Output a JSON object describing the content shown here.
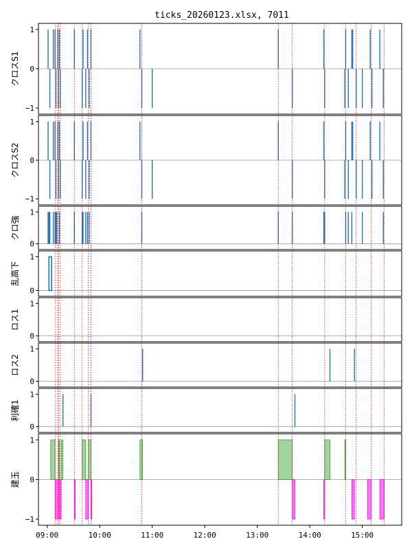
{
  "chart_data": {
    "type": "step-subplots",
    "title": "ticks_20260123.xlsx, 7011",
    "xlim": [
      "08:50",
      "15:45"
    ],
    "xticks": [
      "09:00",
      "10:00",
      "11:00",
      "12:00",
      "13:00",
      "14:00",
      "15:00"
    ],
    "vlines": [
      "09:09",
      "09:12",
      "09:13",
      "09:15",
      "09:31",
      "09:40",
      "09:47",
      "09:50",
      "10:48",
      "13:24",
      "13:40",
      "14:17",
      "14:41",
      "14:53",
      "15:10",
      "15:25"
    ],
    "colors": {
      "line": "#1f77b4",
      "vline": "#ff0000",
      "zero": "#999999",
      "pos_fill": "#2ca02c",
      "neg_fill": "#ff00ff"
    },
    "panels": [
      {
        "ylabel": "クロスS1",
        "yticks": [
          1,
          0,
          -1
        ],
        "ylim": [
          -1.05,
          1.05
        ],
        "signals": [
          {
            "time": "09:01",
            "value": 1
          },
          {
            "time": "09:03",
            "value": -1
          },
          {
            "time": "09:07",
            "value": 1
          },
          {
            "time": "09:09",
            "value": 1
          },
          {
            "time": "09:10",
            "value": -1
          },
          {
            "time": "09:12",
            "value": 1
          },
          {
            "time": "09:13",
            "value": -1
          },
          {
            "time": "09:14",
            "value": 1
          },
          {
            "time": "09:15",
            "value": -1
          },
          {
            "time": "09:31",
            "value": 1
          },
          {
            "time": "09:40",
            "value": -1
          },
          {
            "time": "09:41",
            "value": 1
          },
          {
            "time": "09:44",
            "value": -1
          },
          {
            "time": "09:46",
            "value": 1
          },
          {
            "time": "09:48",
            "value": -1
          },
          {
            "time": "09:50",
            "value": 1
          },
          {
            "time": "10:46",
            "value": 1
          },
          {
            "time": "10:48",
            "value": -1
          },
          {
            "time": "11:00",
            "value": -1
          },
          {
            "time": "13:24",
            "value": 1
          },
          {
            "time": "13:40",
            "value": -1
          },
          {
            "time": "14:16",
            "value": 1
          },
          {
            "time": "14:17",
            "value": -1
          },
          {
            "time": "14:40",
            "value": -1
          },
          {
            "time": "14:41",
            "value": 1
          },
          {
            "time": "14:44",
            "value": -1
          },
          {
            "time": "14:48",
            "value": 1
          },
          {
            "time": "14:49",
            "value": 1
          },
          {
            "time": "14:53",
            "value": -1
          },
          {
            "time": "15:00",
            "value": -1
          },
          {
            "time": "15:09",
            "value": 1
          },
          {
            "time": "15:11",
            "value": -1
          },
          {
            "time": "15:20",
            "value": 1
          },
          {
            "time": "15:24",
            "value": -1
          }
        ]
      },
      {
        "ylabel": "クロスS2",
        "yticks": [
          1,
          0,
          -1
        ],
        "ylim": [
          -1.05,
          1.05
        ],
        "signals": [
          {
            "time": "09:01",
            "value": 1
          },
          {
            "time": "09:03",
            "value": -1
          },
          {
            "time": "09:07",
            "value": 1
          },
          {
            "time": "09:09",
            "value": 1
          },
          {
            "time": "09:10",
            "value": -1
          },
          {
            "time": "09:12",
            "value": 1
          },
          {
            "time": "09:13",
            "value": -1
          },
          {
            "time": "09:14",
            "value": 1
          },
          {
            "time": "09:15",
            "value": -1
          },
          {
            "time": "09:31",
            "value": 1
          },
          {
            "time": "09:40",
            "value": -1
          },
          {
            "time": "09:41",
            "value": 1
          },
          {
            "time": "09:44",
            "value": -1
          },
          {
            "time": "09:46",
            "value": 1
          },
          {
            "time": "09:48",
            "value": -1
          },
          {
            "time": "09:50",
            "value": 1
          },
          {
            "time": "10:46",
            "value": 1
          },
          {
            "time": "10:48",
            "value": -1
          },
          {
            "time": "11:00",
            "value": -1
          },
          {
            "time": "13:24",
            "value": 1
          },
          {
            "time": "13:40",
            "value": -1
          },
          {
            "time": "14:16",
            "value": 1
          },
          {
            "time": "14:17",
            "value": -1
          },
          {
            "time": "14:40",
            "value": -1
          },
          {
            "time": "14:41",
            "value": 1
          },
          {
            "time": "14:44",
            "value": -1
          },
          {
            "time": "14:48",
            "value": 1
          },
          {
            "time": "14:49",
            "value": 1
          },
          {
            "time": "14:53",
            "value": -1
          },
          {
            "time": "15:00",
            "value": -1
          },
          {
            "time": "15:09",
            "value": 1
          },
          {
            "time": "15:11",
            "value": -1
          },
          {
            "time": "15:20",
            "value": 1
          },
          {
            "time": "15:24",
            "value": -1
          }
        ]
      },
      {
        "ylabel": "クロ強",
        "yticks": [
          1,
          0
        ],
        "ylim": [
          -0.05,
          1.05
        ],
        "signals": [
          {
            "time": "09:01",
            "value": 1
          },
          {
            "time": "09:02",
            "value": 1
          },
          {
            "time": "09:03",
            "value": 1
          },
          {
            "time": "09:07",
            "value": 1
          },
          {
            "time": "09:09",
            "value": 1
          },
          {
            "time": "09:10",
            "value": 1
          },
          {
            "time": "09:11",
            "value": 1
          },
          {
            "time": "09:14",
            "value": 1
          },
          {
            "time": "09:31",
            "value": 1
          },
          {
            "time": "09:40",
            "value": 1
          },
          {
            "time": "09:41",
            "value": 1
          },
          {
            "time": "09:44",
            "value": 1
          },
          {
            "time": "09:46",
            "value": 1
          },
          {
            "time": "09:48",
            "value": 1
          },
          {
            "time": "10:48",
            "value": 1
          },
          {
            "time": "13:24",
            "value": 1
          },
          {
            "time": "13:40",
            "value": 1
          },
          {
            "time": "14:16",
            "value": 1
          },
          {
            "time": "14:17",
            "value": 1
          },
          {
            "time": "14:41",
            "value": 1
          },
          {
            "time": "14:44",
            "value": 1
          },
          {
            "time": "14:48",
            "value": 1
          },
          {
            "time": "15:00",
            "value": 1
          },
          {
            "time": "15:24",
            "value": 1
          }
        ]
      },
      {
        "ylabel": "乱高下",
        "yticks": [
          1,
          0
        ],
        "ylim": [
          -0.05,
          1.05
        ],
        "signals": [],
        "pulses": [
          {
            "start": "09:02",
            "end": "09:05",
            "value": 1
          }
        ]
      },
      {
        "ylabel": "ロス1",
        "yticks": [
          1,
          0
        ],
        "ylim": [
          -0.05,
          1.05
        ],
        "signals": []
      },
      {
        "ylabel": "ロス2",
        "yticks": [
          1,
          0
        ],
        "ylim": [
          -0.05,
          1.05
        ],
        "signals": [
          {
            "time": "10:49",
            "value": 1
          },
          {
            "time": "14:23",
            "value": 1
          },
          {
            "time": "14:51",
            "value": 1
          }
        ]
      },
      {
        "ylabel": "利確1",
        "yticks": [
          1,
          0
        ],
        "ylim": [
          -0.05,
          1.05
        ],
        "signals": [
          {
            "time": "09:18",
            "value": 1
          },
          {
            "time": "09:50",
            "value": 1
          },
          {
            "time": "13:43",
            "value": 1
          }
        ]
      },
      {
        "ylabel": "建玉",
        "yticks": [
          1,
          0,
          -1
        ],
        "ylim": [
          -1.05,
          1.05
        ],
        "signals": [],
        "positions": [
          {
            "start": "09:04",
            "end": "09:09",
            "value": 1
          },
          {
            "start": "09:09",
            "end": "09:13",
            "value": -1
          },
          {
            "start": "09:13",
            "end": "09:14",
            "value": 1
          },
          {
            "start": "09:14",
            "end": "09:16",
            "value": -1
          },
          {
            "start": "09:16",
            "end": "09:18",
            "value": 1
          },
          {
            "start": "09:31",
            "end": "09:32",
            "value": -1
          },
          {
            "start": "09:40",
            "end": "09:44",
            "value": 1
          },
          {
            "start": "09:44",
            "end": "09:47",
            "value": -1
          },
          {
            "start": "09:47",
            "end": "09:50",
            "value": 1
          },
          {
            "start": "09:50",
            "end": "09:51",
            "value": -1
          },
          {
            "start": "10:46",
            "end": "10:49",
            "value": 1
          },
          {
            "start": "13:24",
            "end": "13:40",
            "value": 1
          },
          {
            "start": "13:40",
            "end": "13:43",
            "value": -1
          },
          {
            "start": "14:16",
            "end": "14:17",
            "value": -1
          },
          {
            "start": "14:17",
            "end": "14:23",
            "value": 1
          },
          {
            "start": "14:40",
            "end": "14:41",
            "value": 1
          },
          {
            "start": "14:48",
            "end": "14:51",
            "value": -1
          },
          {
            "start": "15:06",
            "end": "15:10",
            "value": -1
          },
          {
            "start": "15:20",
            "end": "15:25",
            "value": -1
          }
        ]
      }
    ]
  }
}
